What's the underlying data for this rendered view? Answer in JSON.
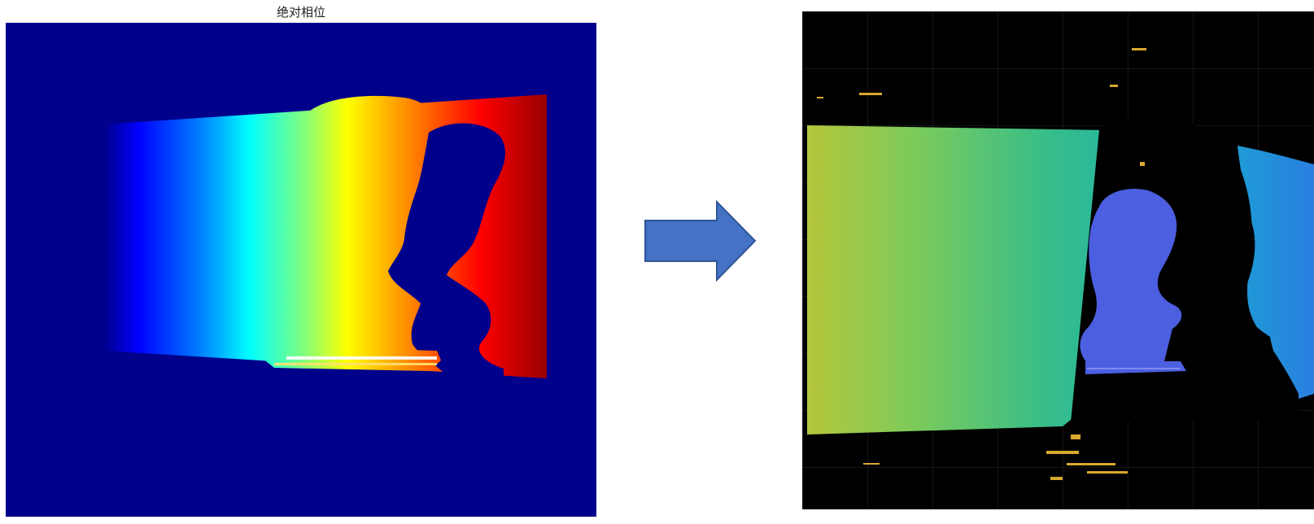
{
  "left_panel": {
    "title": "绝对相位",
    "colormap": "jet",
    "background_color": "#00008B",
    "subject": "bust"
  },
  "arrow": {
    "icon": "right-arrow-icon",
    "fill_color": "#4472C4",
    "stroke_color": "#2F5597"
  },
  "right_panel": {
    "colormap": "viridis",
    "background_color": "#000000",
    "grid": true,
    "subject": "bust"
  }
}
